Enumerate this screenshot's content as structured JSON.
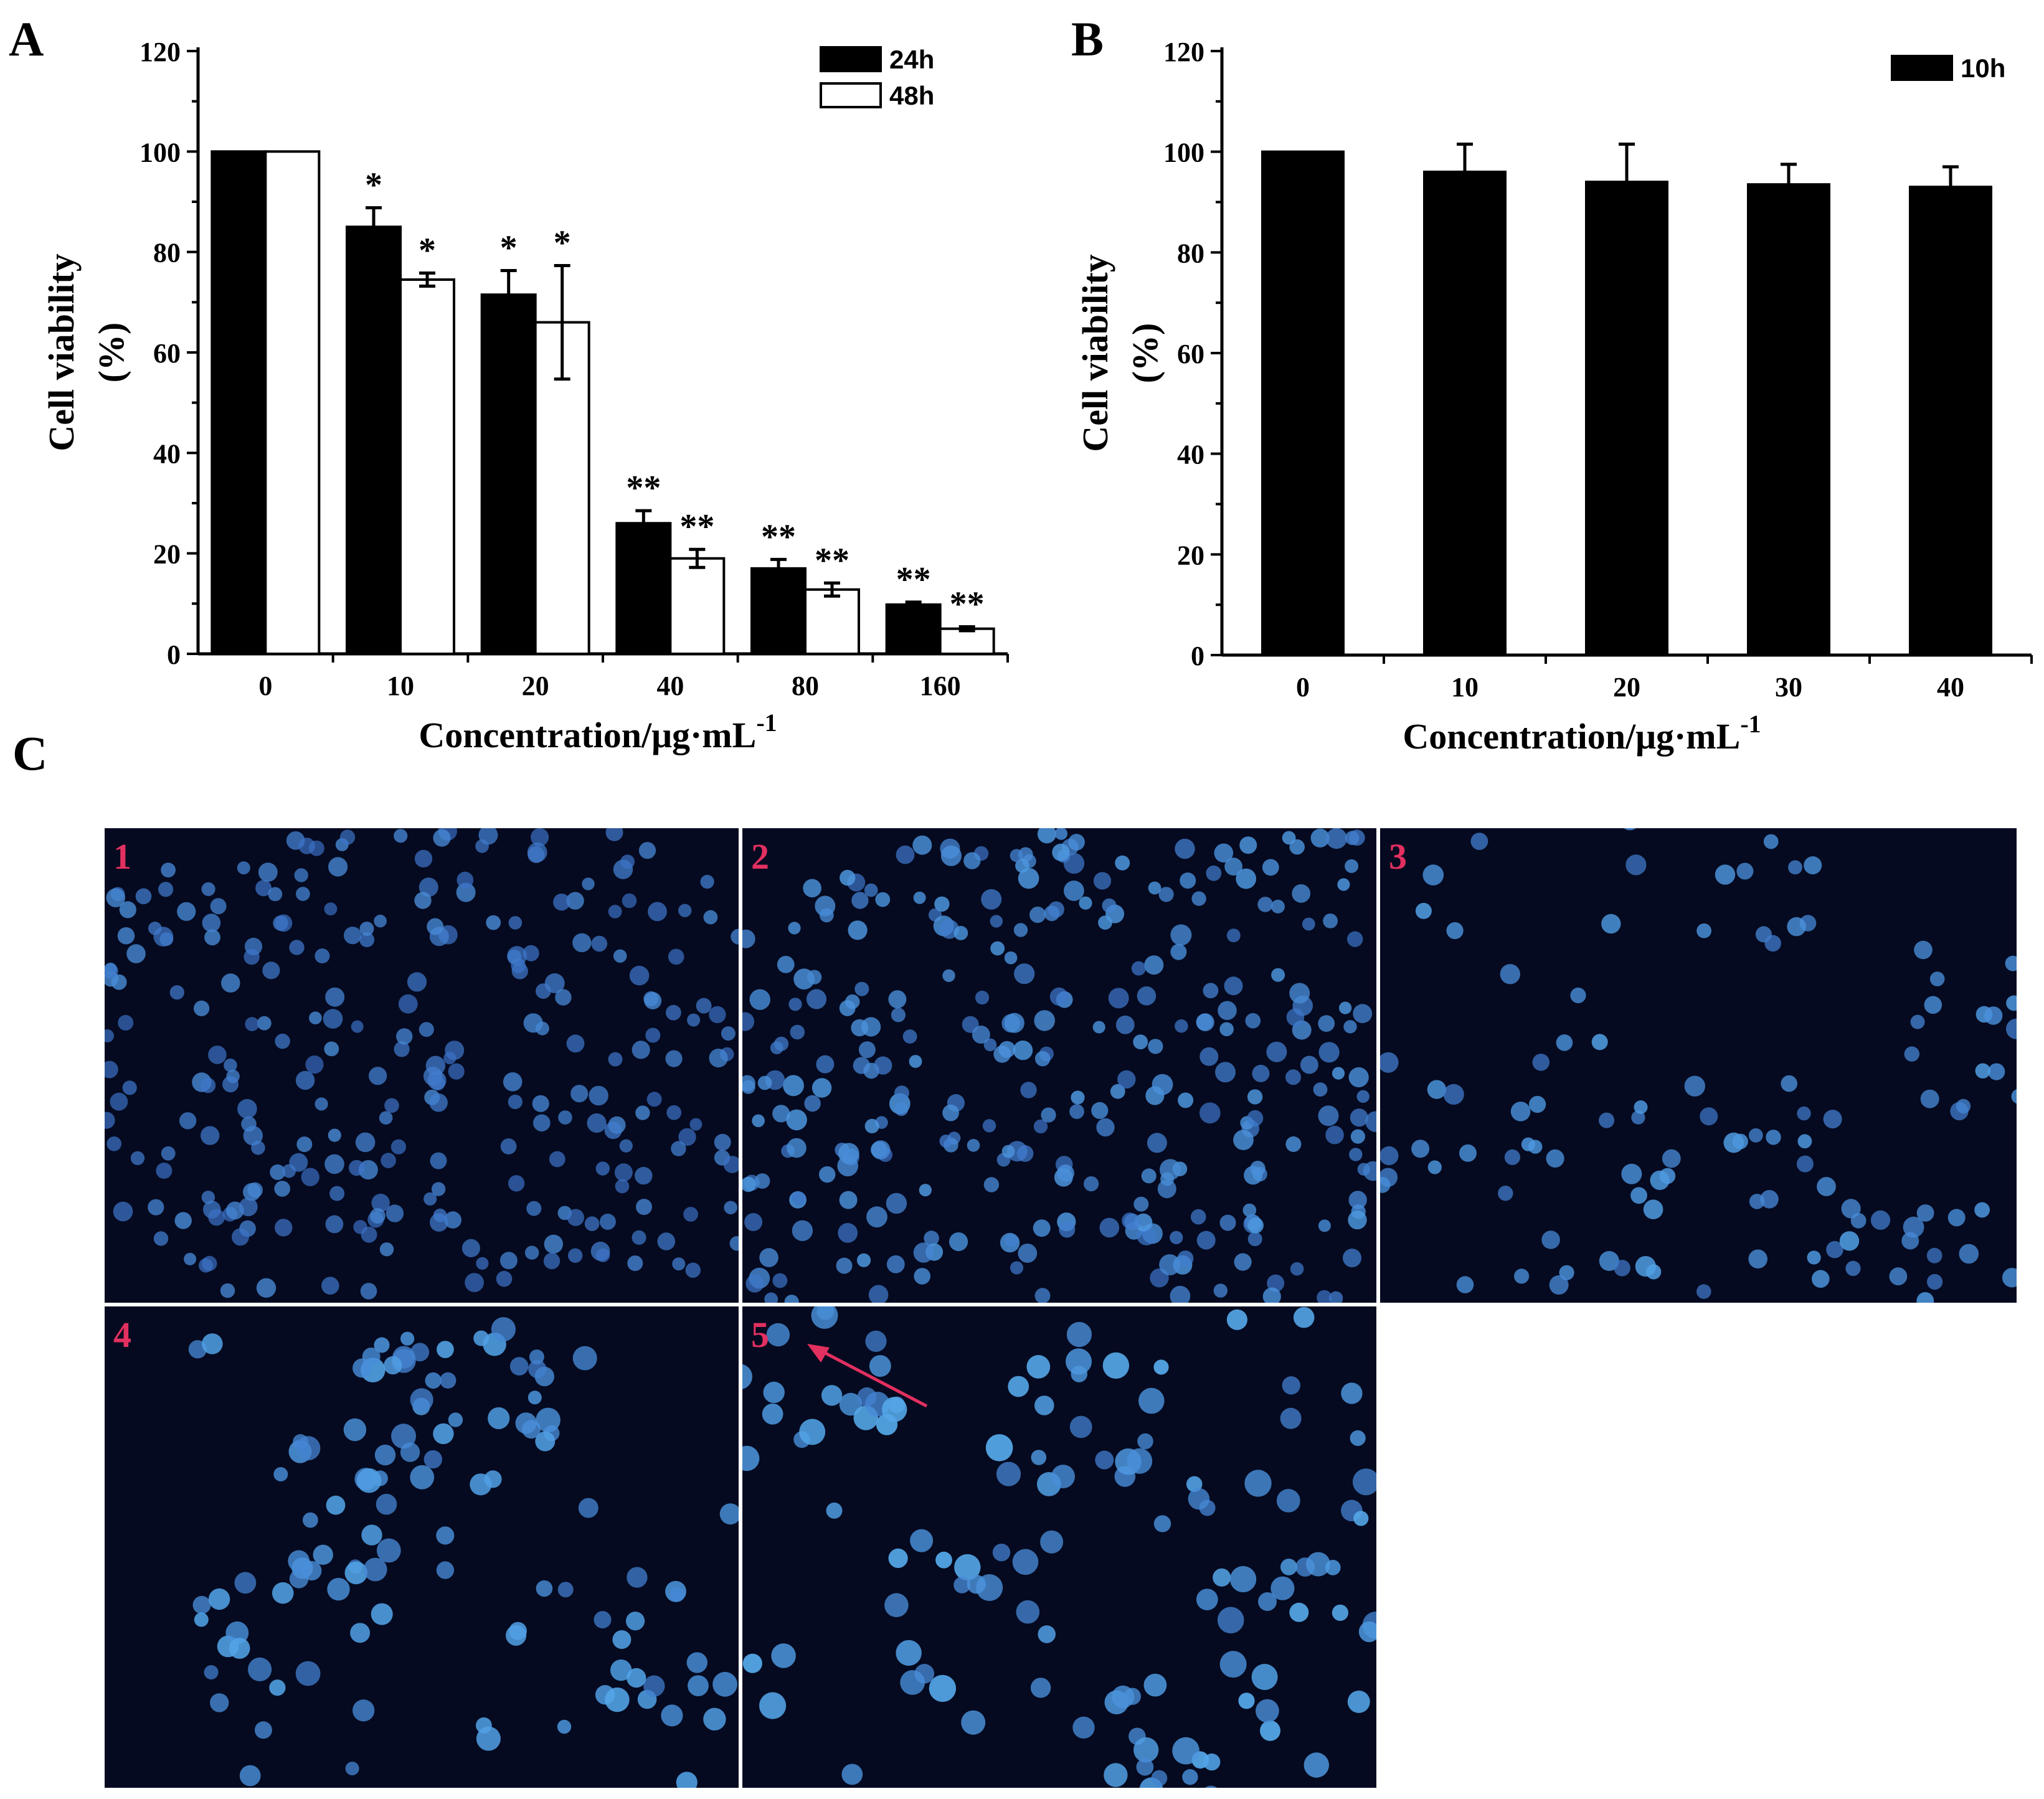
{
  "panels": {
    "a_label": "A",
    "b_label": "B",
    "c_label": "C"
  },
  "chart_data": [
    {
      "type": "bar",
      "panel": "A",
      "categories": [
        "0",
        "10",
        "20",
        "40",
        "80",
        "160"
      ],
      "ylabel": "Cell viability",
      "ylabel_unit": "(%)",
      "xlabel": "Concentration/μg·mL",
      "xlabel_sup": "-1",
      "ylim": [
        0,
        120
      ],
      "yticks": [
        "0",
        "20",
        "40",
        "60",
        "80",
        "100",
        "120"
      ],
      "legend_position": "top-right",
      "series": [
        {
          "name": "24h",
          "color": "#000000",
          "values": [
            100,
            85,
            71.5,
            26,
            17,
            9.8
          ],
          "errors": [
            0,
            3.8,
            4.8,
            2.5,
            1.8,
            0.5
          ],
          "annotations": [
            "",
            "*",
            "*",
            "**",
            "**",
            "**"
          ]
        },
        {
          "name": "48h",
          "color": "#ffffff",
          "values": [
            100,
            74.5,
            66,
            19,
            12.8,
            5
          ],
          "errors": [
            0,
            1.3,
            11.3,
            1.8,
            1.3,
            0.4
          ],
          "annotations": [
            "",
            "*",
            "*",
            "**",
            "**",
            "**"
          ]
        }
      ]
    },
    {
      "type": "bar",
      "panel": "B",
      "categories": [
        "0",
        "10",
        "20",
        "30",
        "40"
      ],
      "ylabel": "Cell viability",
      "ylabel_unit": "(%)",
      "xlabel": "Concentration/μg·mL",
      "xlabel_sup": "-1",
      "ylim": [
        0,
        120
      ],
      "yticks": [
        "0",
        "20",
        "40",
        "60",
        "80",
        "100",
        "120"
      ],
      "legend_position": "top-right",
      "series": [
        {
          "name": "10h",
          "color": "#000000",
          "values": [
            100,
            96,
            94,
            93.5,
            93
          ],
          "errors": [
            0,
            5.5,
            7.5,
            4,
            4
          ]
        }
      ]
    }
  ],
  "micrographs": [
    {
      "number": "1"
    },
    {
      "number": "2"
    },
    {
      "number": "3"
    },
    {
      "number": "4"
    },
    {
      "number": "5"
    }
  ],
  "colors": {
    "micro_background": "#050a20",
    "cell_blue": "#3a64ff",
    "label_red": "#e23060",
    "arrow_red": "#e23060"
  }
}
